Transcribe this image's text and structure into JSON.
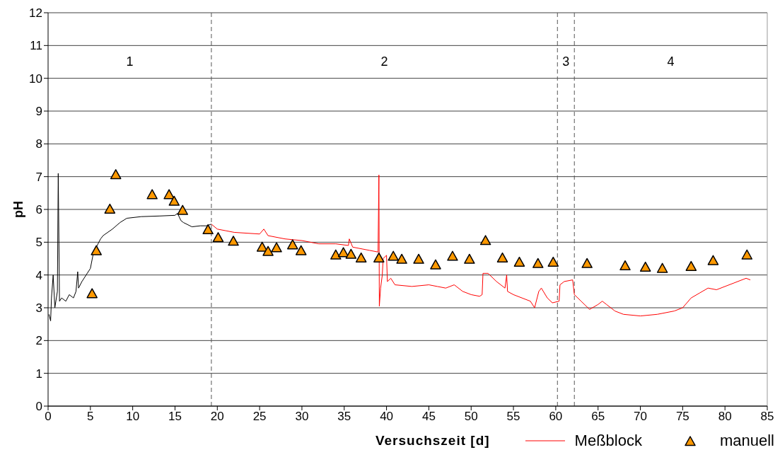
{
  "chart_data": {
    "type": "line",
    "xlabel": "Versuchszeit [d]",
    "ylabel": "pH",
    "xlim": [
      0,
      85
    ],
    "xticks": [
      0,
      5,
      10,
      15,
      20,
      25,
      30,
      35,
      40,
      45,
      50,
      55,
      60,
      65,
      70,
      75,
      80,
      85
    ],
    "ylim": [
      0,
      12
    ],
    "yticks": [
      0,
      1,
      2,
      3,
      4,
      5,
      6,
      7,
      8,
      9,
      10,
      11,
      12
    ],
    "grid": "y",
    "legend": "bottom right",
    "marker": "none",
    "line_style": "solid",
    "series": [
      {
        "color": "#000000",
        "x": [
          0.1,
          0.3,
          0.4,
          0.6,
          0.8,
          1.1,
          1.2,
          1.35,
          1.6,
          2.1,
          2.5,
          3,
          3.3,
          3.5,
          3.6,
          4,
          4.5,
          5,
          5.3,
          5.8,
          6.2,
          6.5,
          7.6,
          8.5,
          9.3,
          11,
          13.2,
          15,
          15.3,
          15.7,
          16,
          17,
          18,
          18.7,
          19.3
        ],
        "values": [
          2.8,
          2.6,
          3.3,
          4.0,
          3.0,
          3.5,
          7.1,
          3.2,
          3.3,
          3.2,
          3.4,
          3.3,
          3.5,
          4.1,
          3.6,
          3.8,
          4.0,
          4.2,
          4.6,
          4.9,
          5.1,
          5.2,
          5.4,
          5.6,
          5.73,
          5.78,
          5.8,
          5.82,
          5.88,
          5.66,
          5.6,
          5.47,
          5.5,
          5.5,
          5.55
        ]
      },
      {
        "name": "Meßblock",
        "color": "#ff0000",
        "x": [
          19.3,
          20,
          21,
          22,
          25,
          25.5,
          26,
          28,
          30,
          32,
          34,
          35.5,
          35.6,
          36,
          38,
          39,
          39.1,
          39.15,
          39.3,
          39.5,
          39.6,
          40,
          40.1,
          40.5,
          41,
          43,
          45,
          46,
          47,
          48,
          49,
          50,
          51,
          51.3,
          51.4,
          52,
          53,
          54,
          54.2,
          54.3,
          55,
          56,
          57,
          57.5,
          58,
          58.3,
          59,
          59.6,
          60.4,
          60.5,
          61,
          62,
          62.2,
          63,
          64,
          65,
          65.5,
          66,
          67,
          68,
          70,
          72,
          74,
          75,
          76,
          77,
          78,
          79,
          81,
          82.5,
          83
        ],
        "values": [
          5.55,
          5.4,
          5.35,
          5.3,
          5.25,
          5.4,
          5.2,
          5.1,
          5.05,
          4.95,
          4.95,
          4.9,
          5.1,
          4.85,
          4.75,
          4.7,
          7.05,
          3.05,
          3.6,
          4.0,
          4.5,
          4.6,
          3.8,
          3.9,
          3.7,
          3.65,
          3.7,
          3.65,
          3.6,
          3.7,
          3.5,
          3.4,
          3.35,
          3.4,
          4.05,
          4.05,
          3.8,
          3.6,
          4.0,
          3.5,
          3.4,
          3.3,
          3.2,
          3.0,
          3.5,
          3.6,
          3.3,
          3.15,
          3.2,
          3.7,
          3.8,
          3.85,
          3.4,
          3.2,
          2.95,
          3.1,
          3.2,
          3.1,
          2.9,
          2.8,
          2.75,
          2.8,
          2.9,
          3.0,
          3.3,
          3.45,
          3.6,
          3.55,
          3.75,
          3.9,
          3.85
        ]
      },
      {
        "type": "scatter",
        "name": "manuell",
        "color": "#ff9900",
        "marker": "triangle",
        "x": [
          5.2,
          5.7,
          7.3,
          8.0,
          12.3,
          14.3,
          14.9,
          15.9,
          18.9,
          20.1,
          21.9,
          25.3,
          26.0,
          27.0,
          28.9,
          29.9,
          34.0,
          34.9,
          35.8,
          37.0,
          39.1,
          40.8,
          41.8,
          43.8,
          45.8,
          47.8,
          49.8,
          51.7,
          53.7,
          55.7,
          57.9,
          59.7,
          63.7,
          68.2,
          70.6,
          72.6,
          76.0,
          78.6,
          82.6
        ],
        "values": [
          3.43,
          4.74,
          6.01,
          7.06,
          6.45,
          6.45,
          6.25,
          5.97,
          5.38,
          5.14,
          5.03,
          4.85,
          4.72,
          4.83,
          4.92,
          4.74,
          4.61,
          4.68,
          4.63,
          4.52,
          4.52,
          4.57,
          4.48,
          4.48,
          4.31,
          4.57,
          4.48,
          5.05,
          4.52,
          4.39,
          4.35,
          4.39,
          4.35,
          4.28,
          4.24,
          4.2,
          4.26,
          4.44,
          4.61
        ]
      }
    ],
    "ref_lines": [
      {
        "axis": "x",
        "value": 19.3,
        "color": "#555555",
        "line_style": "dashed"
      },
      {
        "axis": "x",
        "value": 60.2,
        "color": "#555555",
        "line_style": "dashed"
      },
      {
        "axis": "x",
        "value": 62.2,
        "color": "#555555",
        "line_style": "dashed"
      }
    ],
    "annotations": [
      "1",
      "2",
      "3",
      "4"
    ]
  }
}
